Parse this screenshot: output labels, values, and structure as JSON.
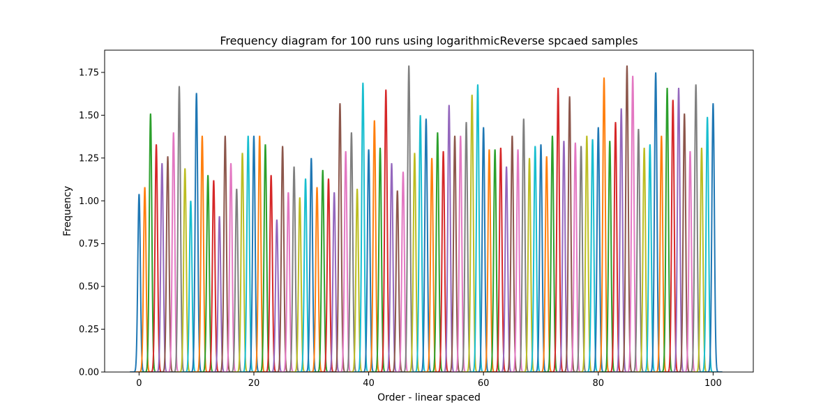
{
  "chart_data": {
    "type": "line",
    "title": "Frequency diagram for 100 runs using logarithmicReverse spcaed samples",
    "xlabel": "Order - linear spaced",
    "ylabel": "Frequency",
    "xlim": [
      -6,
      107
    ],
    "ylim": [
      0,
      1.88
    ],
    "xticks": [
      0,
      20,
      40,
      60,
      80,
      100
    ],
    "yticks": [
      0.0,
      0.25,
      0.5,
      0.75,
      1.0,
      1.25,
      1.5,
      1.75
    ],
    "xtick_labels": [
      "0",
      "20",
      "40",
      "60",
      "80",
      "100"
    ],
    "ytick_labels": [
      "0.00",
      "0.25",
      "0.50",
      "0.75",
      "1.00",
      "1.25",
      "1.50",
      "1.75"
    ],
    "grid": false,
    "legend": "none",
    "peak_width": 0.22,
    "palette": [
      "#1f77b4",
      "#ff7f0e",
      "#2ca02c",
      "#d62728",
      "#9467bd",
      "#8c564b",
      "#e377c2",
      "#7f7f7f",
      "#bcbd22",
      "#17becf"
    ],
    "peaks": [
      1.04,
      1.08,
      1.51,
      1.33,
      1.22,
      1.26,
      1.4,
      1.67,
      1.19,
      1.0,
      1.63,
      1.38,
      1.15,
      1.12,
      0.91,
      1.38,
      1.22,
      1.07,
      1.28,
      1.38,
      1.38,
      1.38,
      1.33,
      1.15,
      0.89,
      1.32,
      1.05,
      1.2,
      1.02,
      1.13,
      1.25,
      1.08,
      1.18,
      1.13,
      1.05,
      1.57,
      1.29,
      1.4,
      1.07,
      1.69,
      1.3,
      1.47,
      1.31,
      1.65,
      1.22,
      1.06,
      1.17,
      1.79,
      1.28,
      1.5,
      1.48,
      1.25,
      1.4,
      1.29,
      1.56,
      1.38,
      1.38,
      1.46,
      1.62,
      1.68,
      1.43,
      1.3,
      1.3,
      1.31,
      1.2,
      1.38,
      1.3,
      1.48,
      1.25,
      1.32,
      1.33,
      1.26,
      1.38,
      1.66,
      1.35,
      1.61,
      1.34,
      1.32,
      1.38,
      1.36,
      1.43,
      1.72,
      1.35,
      1.46,
      1.54,
      1.79,
      1.73,
      1.42,
      1.31,
      1.33,
      1.75,
      1.38,
      1.66,
      1.59,
      1.66,
      1.51,
      1.29,
      1.68,
      1.31,
      1.49,
      1.57
    ]
  }
}
